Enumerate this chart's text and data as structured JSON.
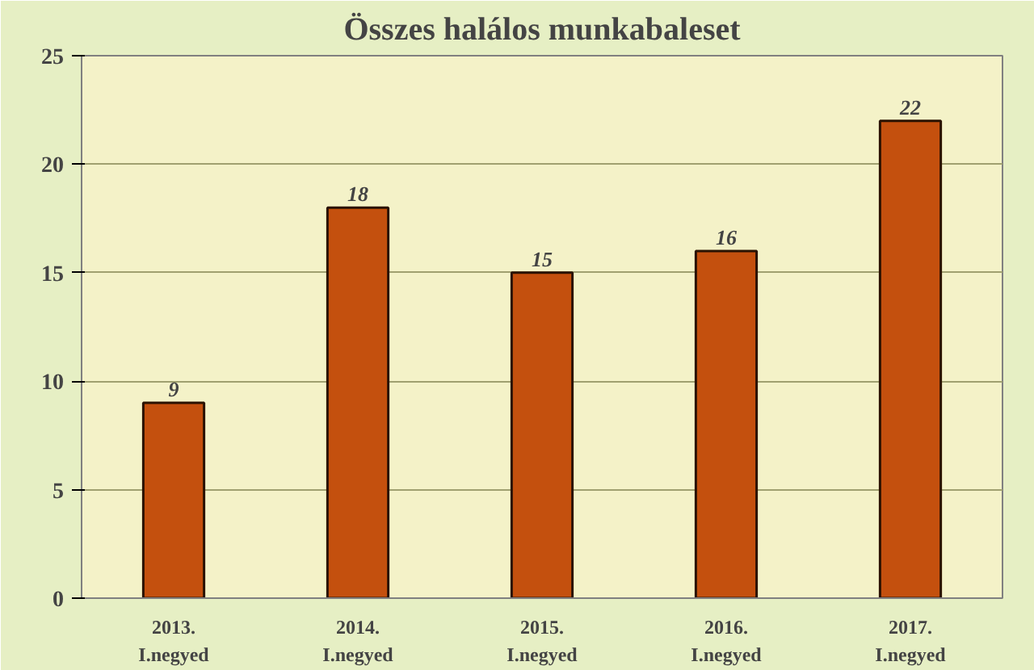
{
  "chart_data": {
    "type": "bar",
    "title": "Összes halálos munkabaleset",
    "categories": [
      "2013.\nI.negyed",
      "2014.\nI.negyed",
      "2015.\nI.negyed",
      "2016.\nI.negyed",
      "2017.\nI.negyed"
    ],
    "values": [
      9,
      18,
      15,
      16,
      22
    ],
    "color": "#c4500e",
    "ylim": [
      0,
      25
    ],
    "yticks": [
      0,
      5,
      10,
      15,
      20,
      25
    ],
    "grid": "y",
    "data_labels": true
  }
}
